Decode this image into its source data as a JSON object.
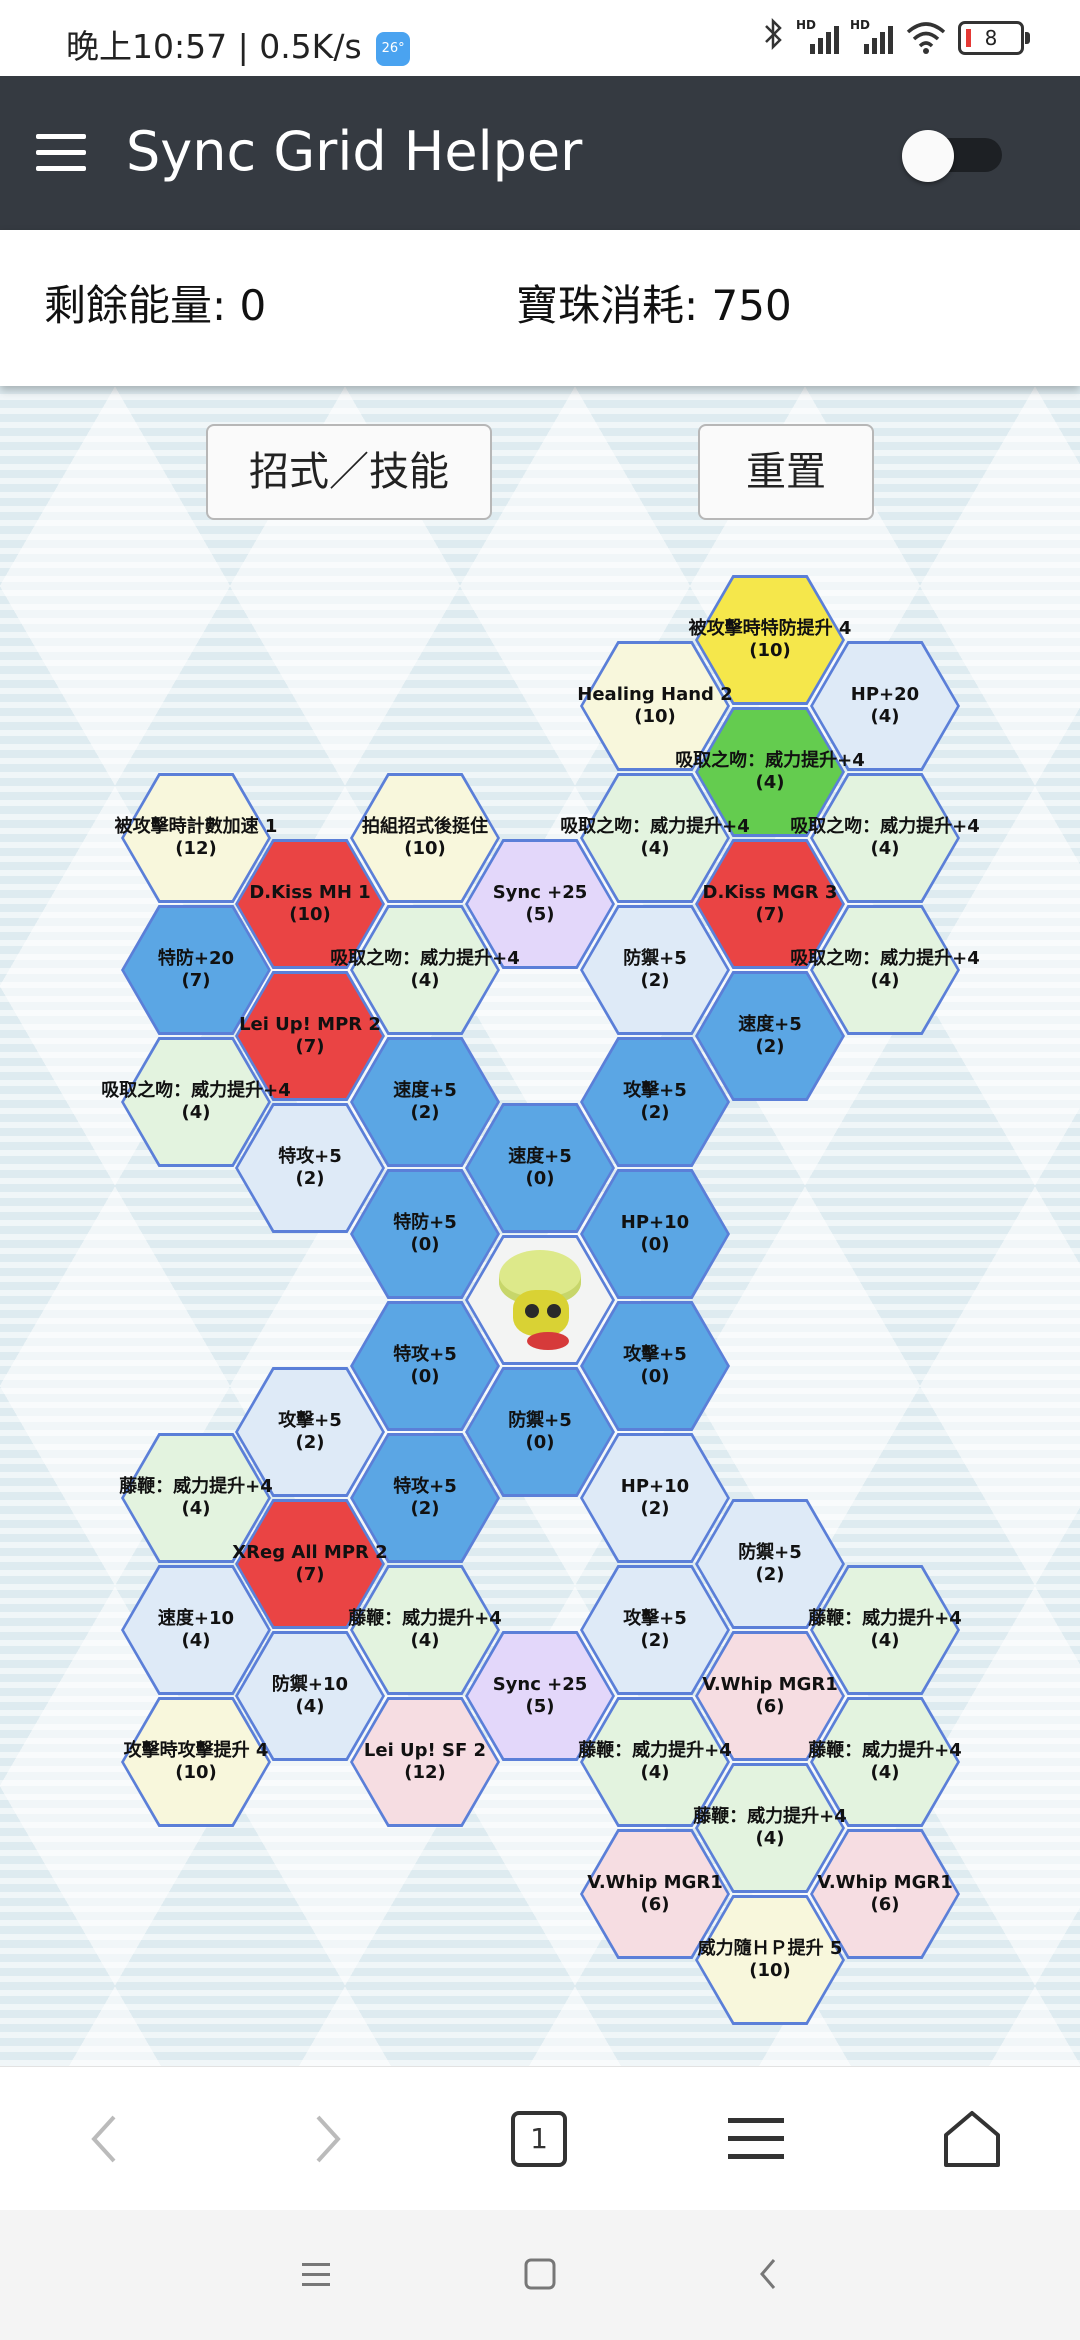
{
  "status_bar": {
    "time_speed": "晚上10:57 | 0.5K/s",
    "weather_badge": "26°",
    "network_hd_1": "HD",
    "network_hd_2": "HD",
    "battery": "8",
    "icons": [
      "bluetooth-icon",
      "signal-icon",
      "signal-icon",
      "wifi-icon",
      "battery-icon"
    ]
  },
  "app_bar": {
    "title": "Sync Grid Helper",
    "menu_icon": "hamburger-menu-icon",
    "toggle_state": "off"
  },
  "info": {
    "remaining_energy": "剩餘能量: 0",
    "orb_cost": "寶珠消耗: 750"
  },
  "buttons": {
    "moves_skills": "招式／技能",
    "reset": "重置"
  },
  "grid": {
    "cells": [
      {
        "name": "被攻擊時特防提升 4",
        "cost": "(10)",
        "color": "yel"
      },
      {
        "name": "Healing Hand 2",
        "cost": "(10)",
        "color": "cream"
      },
      {
        "name": "HP+20",
        "cost": "(4)",
        "color": "pale"
      },
      {
        "name": "吸取之吻：威力提升+4",
        "cost": "(4)",
        "color": "lime"
      },
      {
        "name": "被攻擊時計數加速 1",
        "cost": "(12)",
        "color": "cream"
      },
      {
        "name": "拍組招式後挺住",
        "cost": "(10)",
        "color": "cream"
      },
      {
        "name": "吸取之吻：威力提升+4",
        "cost": "(4)",
        "color": "green"
      },
      {
        "name": "吸取之吻：威力提升+4",
        "cost": "(4)",
        "color": "green"
      },
      {
        "name": "D.Kiss MH 1",
        "cost": "(10)",
        "color": "red"
      },
      {
        "name": "Sync +25",
        "cost": "(5)",
        "color": "lav"
      },
      {
        "name": "D.Kiss MGR 3",
        "cost": "(7)",
        "color": "red"
      },
      {
        "name": "特防+20",
        "cost": "(7)",
        "color": "sky"
      },
      {
        "name": "吸取之吻：威力提升+4",
        "cost": "(4)",
        "color": "green"
      },
      {
        "name": "防禦+5",
        "cost": "(2)",
        "color": "pale"
      },
      {
        "name": "吸取之吻：威力提升+4",
        "cost": "(4)",
        "color": "green"
      },
      {
        "name": "Lei Up! MPR 2",
        "cost": "(7)",
        "color": "red"
      },
      {
        "name": "速度+5",
        "cost": "(2)",
        "color": "sky"
      },
      {
        "name": "吸取之吻：威力提升+4",
        "cost": "(4)",
        "color": "green"
      },
      {
        "name": "速度+5",
        "cost": "(2)",
        "color": "sky"
      },
      {
        "name": "攻擊+5",
        "cost": "(2)",
        "color": "sky"
      },
      {
        "name": "特攻+5",
        "cost": "(2)",
        "color": "pale"
      },
      {
        "name": "速度+5",
        "cost": "(0)",
        "color": "sky"
      },
      {
        "name": "特防+5",
        "cost": "(0)",
        "color": "sky"
      },
      {
        "name": "HP+10",
        "cost": "(0)",
        "color": "sky"
      },
      {
        "name": "特攻+5",
        "cost": "(0)",
        "color": "sky"
      },
      {
        "name": "攻擊+5",
        "cost": "(0)",
        "color": "sky"
      },
      {
        "name": "攻擊+5",
        "cost": "(2)",
        "color": "pale"
      },
      {
        "name": "防禦+5",
        "cost": "(0)",
        "color": "sky"
      },
      {
        "name": "藤鞭：威力提升+4",
        "cost": "(4)",
        "color": "green"
      },
      {
        "name": "特攻+5",
        "cost": "(2)",
        "color": "sky"
      },
      {
        "name": "HP+10",
        "cost": "(2)",
        "color": "pale"
      },
      {
        "name": "XReg All MPR 2",
        "cost": "(7)",
        "color": "red"
      },
      {
        "name": "防禦+5",
        "cost": "(2)",
        "color": "pale"
      },
      {
        "name": "速度+10",
        "cost": "(4)",
        "color": "pale"
      },
      {
        "name": "藤鞭：威力提升+4",
        "cost": "(4)",
        "color": "green"
      },
      {
        "name": "攻擊+5",
        "cost": "(2)",
        "color": "pale"
      },
      {
        "name": "藤鞭：威力提升+4",
        "cost": "(4)",
        "color": "green"
      },
      {
        "name": "防禦+10",
        "cost": "(4)",
        "color": "pale"
      },
      {
        "name": "Sync +25",
        "cost": "(5)",
        "color": "lav"
      },
      {
        "name": "V.Whip MGR1",
        "cost": "(6)",
        "color": "pink"
      },
      {
        "name": "攻擊時攻擊提升 4",
        "cost": "(10)",
        "color": "cream"
      },
      {
        "name": "Lei Up! SF 2",
        "cost": "(12)",
        "color": "pink"
      },
      {
        "name": "藤鞭：威力提升+4",
        "cost": "(4)",
        "color": "green"
      },
      {
        "name": "藤鞭：威力提升+4",
        "cost": "(4)",
        "color": "green"
      },
      {
        "name": "藤鞭：威力提升+4",
        "cost": "(4)",
        "color": "green"
      },
      {
        "name": "V.Whip MGR1",
        "cost": "(6)",
        "color": "pink"
      },
      {
        "name": "V.Whip MGR1",
        "cost": "(6)",
        "color": "pink"
      },
      {
        "name": "威力隨ＨＰ提升 5",
        "cost": "(10)",
        "color": "cream"
      }
    ]
  },
  "bottom_nav": {
    "tab_count": "1",
    "icons": [
      "back-arrow-icon",
      "forward-arrow-icon",
      "tabs-icon",
      "menu-icon",
      "home-icon"
    ]
  },
  "system_nav": {
    "icons": [
      "recents-icon",
      "home-square-icon",
      "back-icon"
    ]
  }
}
